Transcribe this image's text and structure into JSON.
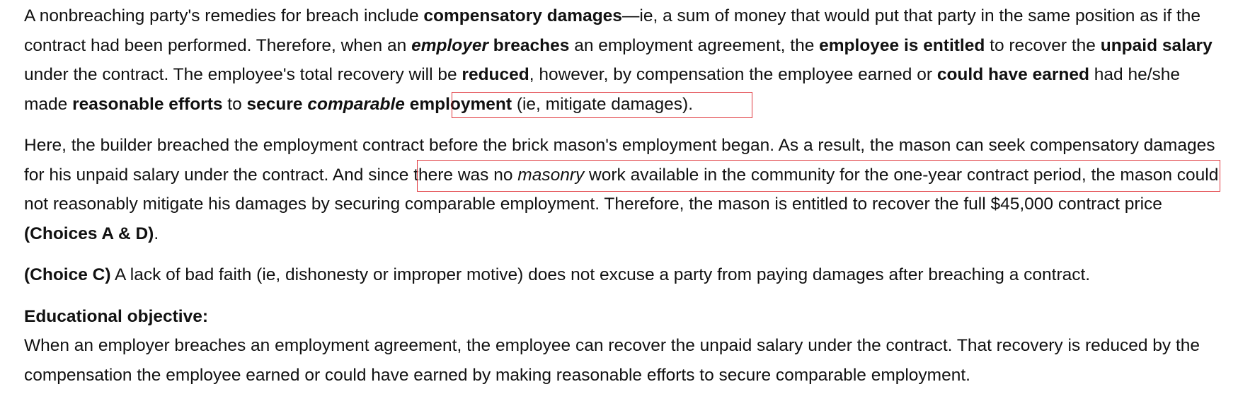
{
  "explanation": {
    "para1": {
      "t1": "A nonbreaching party's remedies for breach include ",
      "b1": "compensatory damages",
      "t2": "—ie, a sum of money that would put that party in the same position as if the contract had been performed.  Therefore, when an ",
      "bi1": "employer",
      "b2": " breaches",
      "t3": " an employment agreement, the ",
      "b3": "employee is entitled",
      "t4": " to recover the ",
      "b4": "unpaid salary",
      "t5": " under the contract.  The employee's total recovery will be ",
      "b5": "reduced",
      "t6": ", however, by compensation the employee earned or ",
      "b6": "could have earned",
      "t7": " had he/she made ",
      "b7": "reasonable efforts",
      "t8": " to ",
      "b8": "secure ",
      "bi2": "comparable",
      "b9": " employment",
      "t9": " (ie, mitigate damages)."
    },
    "para2": {
      "t1": "Here, the builder breached the employment contract before the brick mason's employment began.  As a result, the mason can seek compensatory damages for his unpaid salary under the contract.  And since there was no ",
      "i1": "masonry",
      "t2": " work available in the community for the one-year contract period, the mason could not reasonably mitigate his damages by securing comparable employment.  Therefore, the mason is entitled to recover the full $45,000 contract price ",
      "b1": "(Choices A & D)",
      "t3": "."
    },
    "para3": {
      "b1": "(Choice C)",
      "t1": "  A lack of bad faith (ie, dishonesty or improper motive) does not excuse a party from paying damages after breaching a contract."
    },
    "objective": {
      "heading": "Educational objective:",
      "text": "When an employer breaches an employment agreement, the employee can recover the unpaid salary under the contract.  That recovery is reduced by the compensation the employee earned or could have earned by making reasonable efforts to secure comparable employment."
    }
  },
  "highlight_color": "#e0383e"
}
